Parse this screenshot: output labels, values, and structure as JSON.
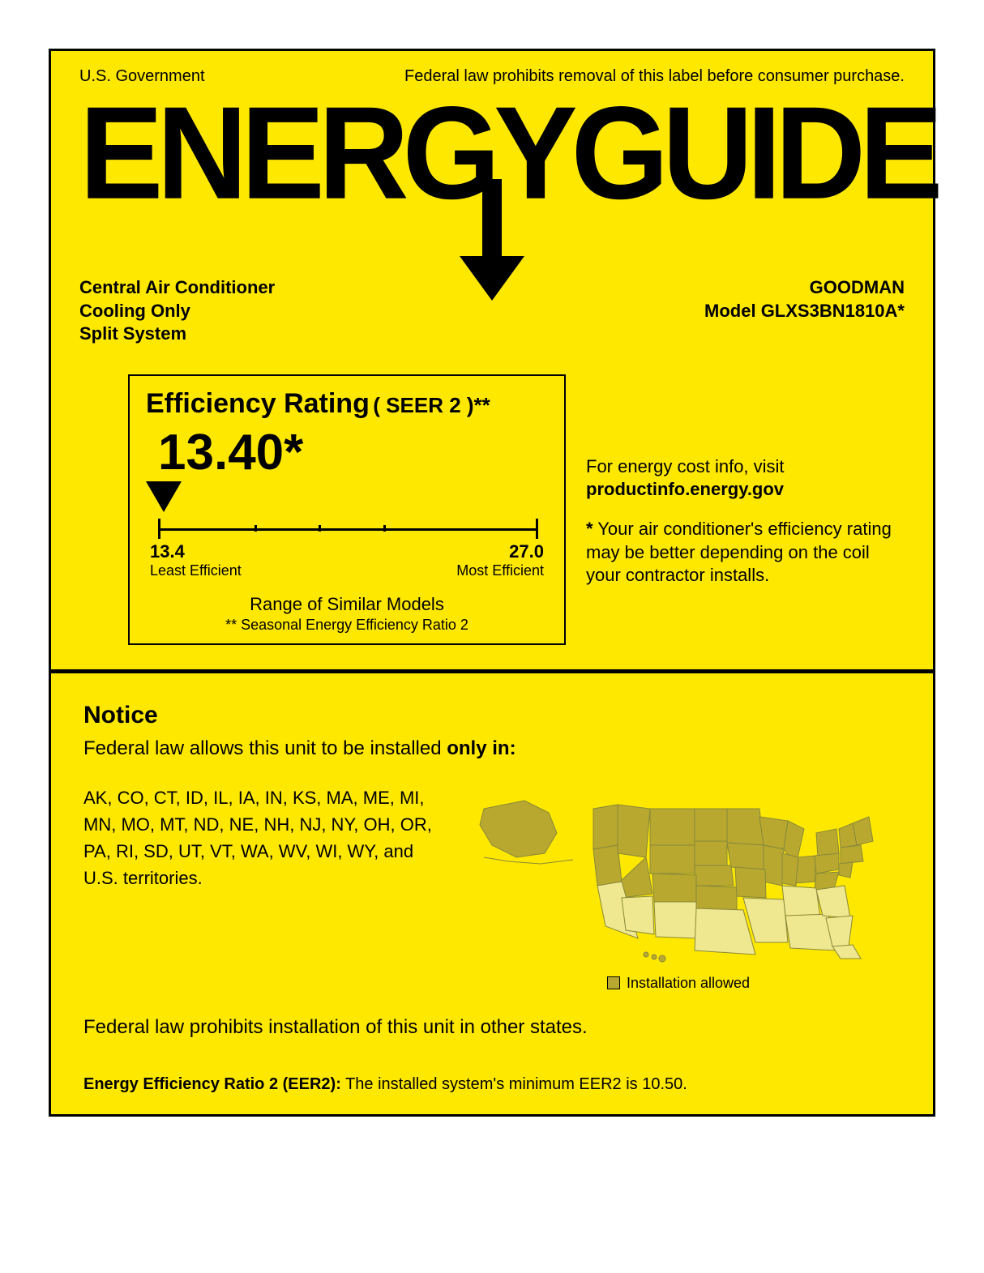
{
  "colors": {
    "background": "#ffe800",
    "text": "#000000",
    "border": "#000000",
    "map_allowed": "#b8a830",
    "map_not_allowed": "#f0e890",
    "map_stroke": "#888838"
  },
  "header": {
    "left": "U.S. Government",
    "right": "Federal law prohibits removal of this label before consumer purchase."
  },
  "logo": "ENERGYGUIDE",
  "product": {
    "type1": "Central Air Conditioner",
    "type2": "Cooling Only",
    "type3": "Split System",
    "manufacturer": "GOODMAN",
    "model": "Model GLXS3BN1810A*"
  },
  "rating": {
    "title": "Efficiency Rating",
    "subtitle": "( SEER 2 )**",
    "value": "13.40*",
    "scale_min": "13.4",
    "scale_min_label": "Least Efficient",
    "scale_max": "27.0",
    "scale_max_label": "Most Efficient",
    "range_text": "Range of Similar Models",
    "seer_note": "** Seasonal Energy Efficiency Ratio 2",
    "tick_positions_pct": [
      3,
      27,
      43,
      59,
      97
    ]
  },
  "side": {
    "visit_text": "For energy cost info, visit",
    "visit_url": "productinfo.energy.gov",
    "asterisk": "*",
    "note": "Your air conditioner's efficiency rating may be better depending on the coil your contractor installs."
  },
  "notice": {
    "title": "Notice",
    "intro_prefix": "Federal law allows this unit to be installed ",
    "intro_bold": "only in:",
    "states": "AK, CO, CT, ID, IL, IA, IN, KS, MA, ME, MI, MN, MO, MT, ND, NE, NH, NJ, NY, OH, OR, PA, RI, SD, UT, VT, WA, WV, WI, WY, and U.S. territories.",
    "legend": "Installation allowed",
    "prohibit": "Federal law prohibits installation of this unit in other states."
  },
  "eer": {
    "label": "Energy Efficiency Ratio 2 (EER2):",
    "text": "The installed system's minimum EER2 is 10.50."
  }
}
